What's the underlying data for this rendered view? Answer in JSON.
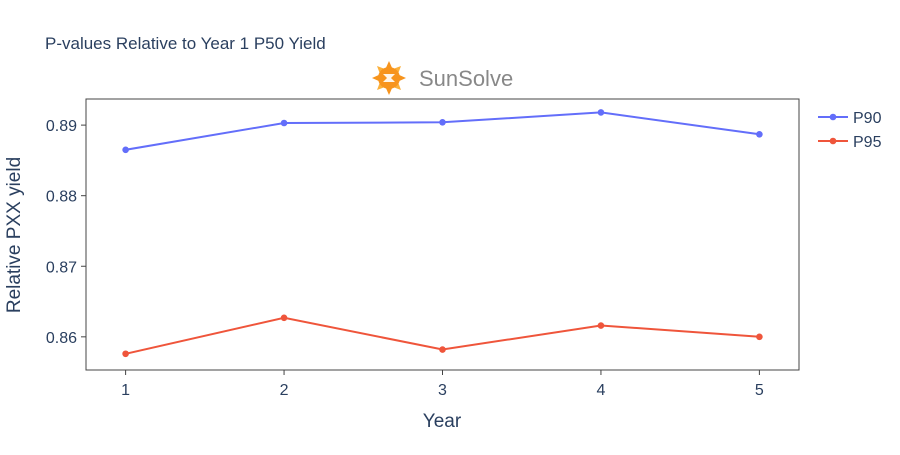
{
  "chart_data": {
    "type": "line",
    "title": "P-values Relative to Year 1 P50 Yield",
    "xlabel": "Year",
    "ylabel": "Relative PXX yield",
    "x": [
      1,
      2,
      3,
      4,
      5
    ],
    "xticks": [
      "1",
      "2",
      "3",
      "4",
      "5"
    ],
    "yticks": [
      0.86,
      0.87,
      0.88,
      0.89
    ],
    "ytick_labels": [
      "0.86",
      "0.87",
      "0.88",
      "0.89"
    ],
    "xlim": [
      0.75,
      5.25
    ],
    "ylim": [
      0.8553,
      0.8937
    ],
    "grid": false,
    "legend_position": "top-right",
    "series": [
      {
        "name": "P90",
        "color": "#636efa",
        "values": [
          0.8865,
          0.8903,
          0.8904,
          0.8918,
          0.8887
        ]
      },
      {
        "name": "P95",
        "color": "#ef553b",
        "values": [
          0.8576,
          0.8627,
          0.8582,
          0.8616,
          0.86
        ]
      }
    ]
  },
  "logo": {
    "text": "SunSolve",
    "icon": "sunsolve-sun-logo-icon",
    "colors": {
      "primary": "#f7941d",
      "secondary": "#fbb03b",
      "text": "#888888"
    }
  }
}
